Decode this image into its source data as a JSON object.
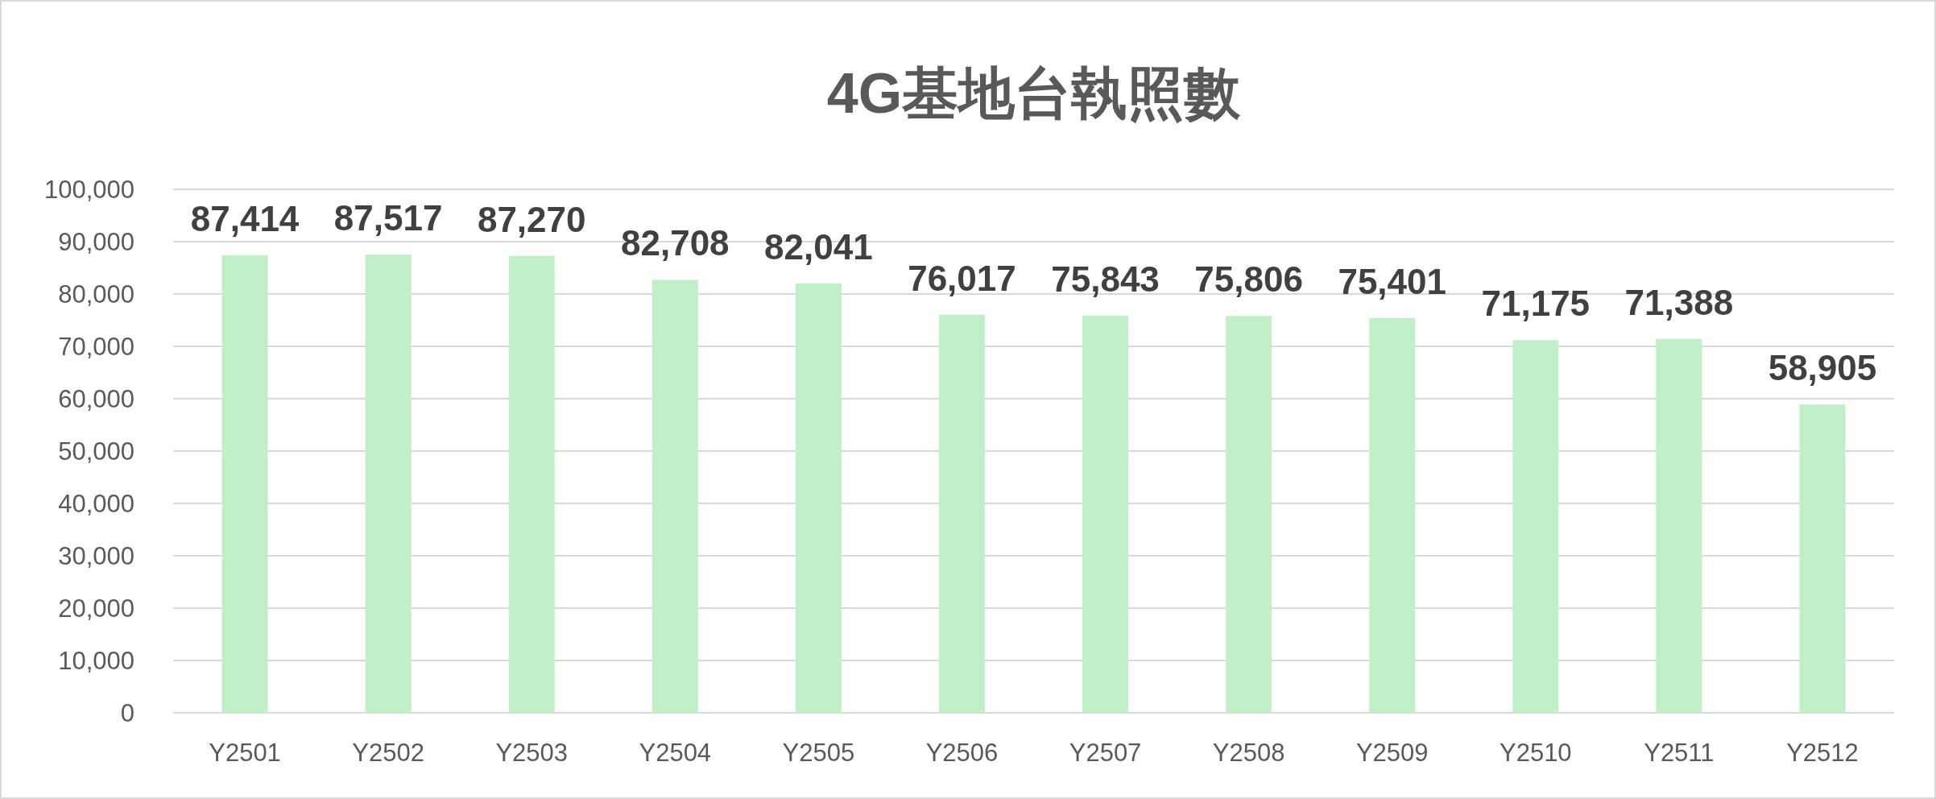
{
  "chart_data": {
    "type": "bar",
    "title": "4G基地台執照數",
    "categories": [
      "Y2501",
      "Y2502",
      "Y2503",
      "Y2504",
      "Y2505",
      "Y2506",
      "Y2507",
      "Y2508",
      "Y2509",
      "Y2510",
      "Y2511",
      "Y2512"
    ],
    "values": [
      87414,
      87517,
      87270,
      82708,
      82041,
      76017,
      75843,
      75806,
      75401,
      71175,
      71388,
      58905
    ],
    "color": "#c1f0c8",
    "ylim": [
      0,
      100000
    ],
    "yticks": [
      {
        "value": 0,
        "label": "0"
      },
      {
        "value": 10000,
        "label": "10,000"
      },
      {
        "value": 20000,
        "label": "20,000"
      },
      {
        "value": 30000,
        "label": "30,000"
      },
      {
        "value": 40000,
        "label": "40,000"
      },
      {
        "value": 50000,
        "label": "50,000"
      },
      {
        "value": 60000,
        "label": "60,000"
      },
      {
        "value": 70000,
        "label": "70,000"
      },
      {
        "value": 80000,
        "label": "80,000"
      },
      {
        "value": 90000,
        "label": "90,000"
      },
      {
        "value": 100000,
        "label": "100,000"
      }
    ],
    "value_labels": [
      "87,414",
      "87,517",
      "87,270",
      "82,708",
      "82,041",
      "76,017",
      "75,843",
      "75,806",
      "75,401",
      "71,175",
      "71,388",
      "58,905"
    ],
    "grid": "y"
  }
}
